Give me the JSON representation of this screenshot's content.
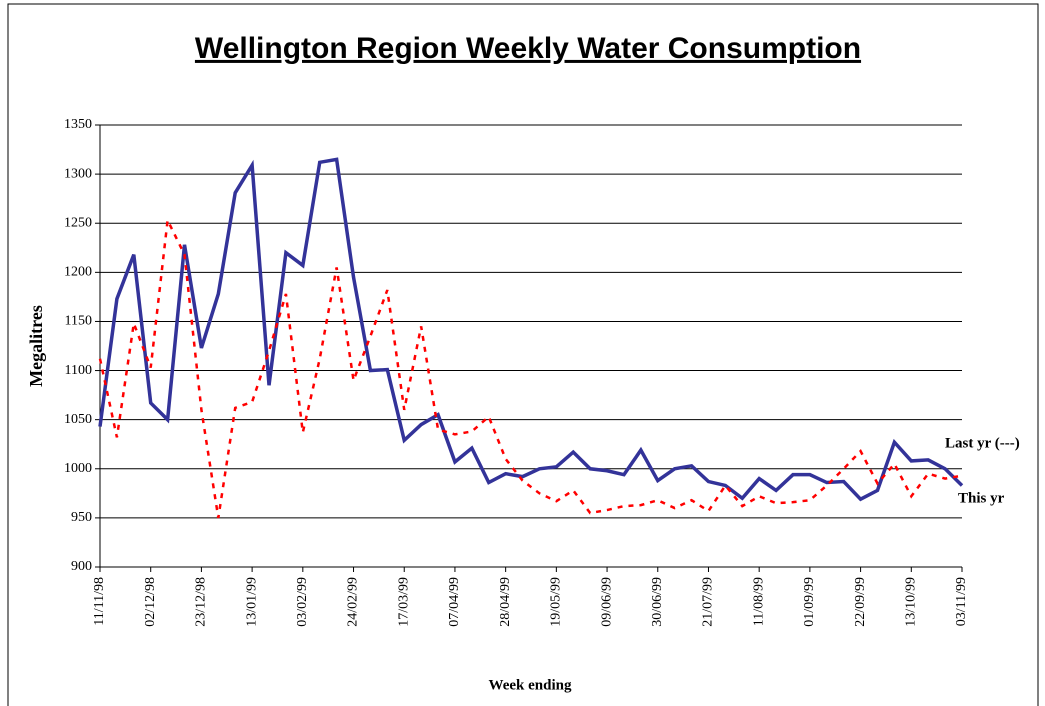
{
  "chart_data": {
    "type": "line",
    "title": "Wellington Region Weekly Water Consumption",
    "x_label": "Week ending",
    "y_label": "Megalitres",
    "categories": [
      "11/11/98",
      null,
      null,
      "02/12/98",
      null,
      null,
      "23/12/98",
      null,
      null,
      "13/01/99",
      null,
      null,
      "03/02/99",
      null,
      null,
      "24/02/99",
      null,
      null,
      "17/03/99",
      null,
      null,
      "07/04/99",
      null,
      null,
      "28/04/99",
      null,
      null,
      "19/05/99",
      null,
      null,
      "09/06/99",
      null,
      null,
      "30/06/99",
      null,
      null,
      "21/07/99",
      null,
      null,
      "11/08/99",
      null,
      null,
      "01/09/99",
      null,
      null,
      "22/09/99",
      null,
      null,
      "13/10/99",
      null,
      null,
      "03/11/99"
    ],
    "series": [
      {
        "name": "This yr",
        "color": "#333399",
        "dashed": false,
        "values": [
          1043,
          1173,
          1218,
          1067,
          1050,
          1228,
          1123,
          1178,
          1281,
          1309,
          1085,
          1220,
          1207,
          1312,
          1315,
          1195,
          1100,
          1101,
          1029,
          1045,
          1055,
          1007,
          1021,
          986,
          995,
          992,
          1000,
          1002,
          1017,
          1000,
          998,
          994,
          1019,
          988,
          1000,
          1003,
          987,
          983,
          970,
          990,
          978,
          994,
          994,
          986,
          987,
          969,
          978,
          1027,
          1008,
          1009,
          1000,
          983
        ]
      },
      {
        "name": "Last yr (---)",
        "color": "#ff0000",
        "dashed": true,
        "values": [
          1112,
          1032,
          1148,
          1103,
          1253,
          1218,
          1060,
          950,
          1062,
          1068,
          1120,
          1178,
          1037,
          1112,
          1205,
          1090,
          1135,
          1182,
          1060,
          1145,
          1040,
          1035,
          1038,
          1053,
          1010,
          988,
          975,
          967,
          978,
          955,
          958,
          962,
          963,
          968,
          960,
          968,
          957,
          983,
          962,
          972,
          965,
          966,
          968,
          983,
          1000,
          1018,
          985,
          1005,
          972,
          995,
          990,
          993
        ]
      }
    ],
    "ylim": [
      900,
      1350
    ],
    "yticks": [
      900,
      950,
      1000,
      1050,
      1100,
      1150,
      1200,
      1250,
      1300,
      1350
    ],
    "grid": true
  }
}
